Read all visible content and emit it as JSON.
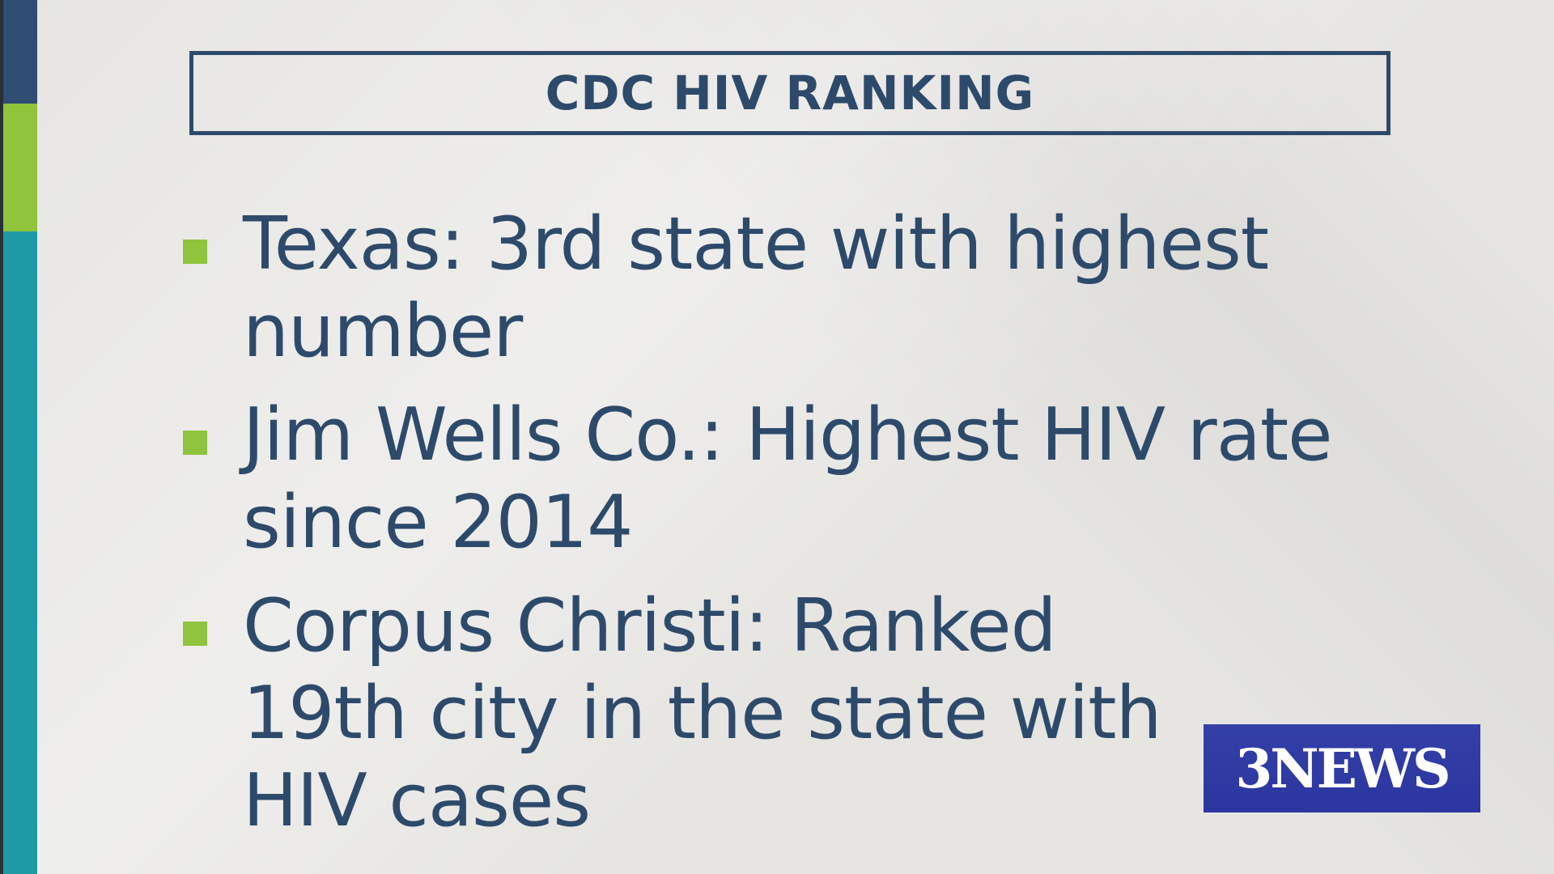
{
  "title": "CDC HIV RANKING",
  "bullets": [
    {
      "text": "Texas: 3rd state with highest number"
    },
    {
      "text": "Jim Wells Co.: Highest HIV rate since 2014"
    },
    {
      "text": "Corpus Christi: Ranked 19th city in the state with HIV cases"
    }
  ],
  "logo": {
    "text": "3NEWS"
  },
  "side_stripe_icon": "plus-icon",
  "colors": {
    "text": "#2e4a6b",
    "bullet": "#8fc43c",
    "stripe_navy": "#2f4d72",
    "stripe_green": "#8fc43c",
    "stripe_teal": "#1e9aa6",
    "logo_bg": "#2c35a0"
  }
}
